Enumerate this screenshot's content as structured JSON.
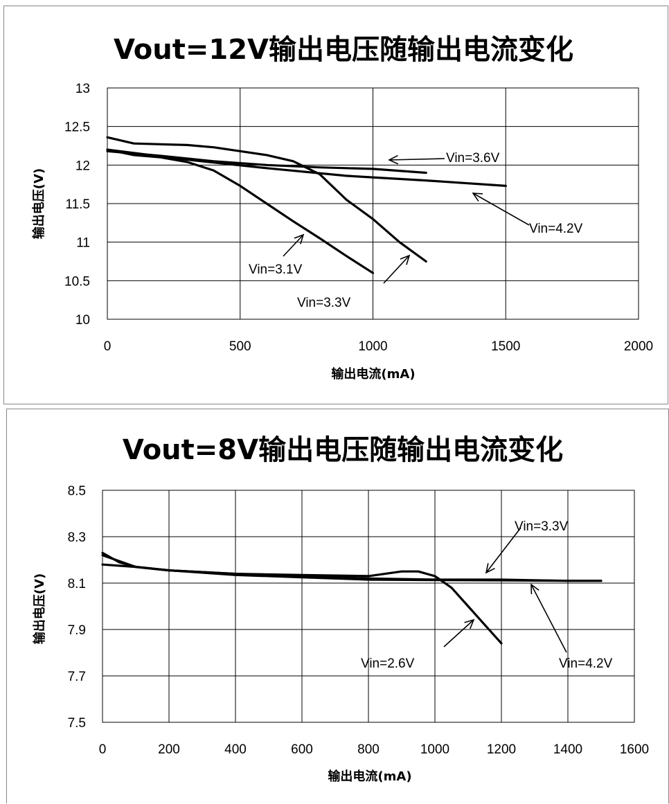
{
  "chart_data": [
    {
      "type": "line",
      "title": "Vout=12V输出电压随输出电流变化",
      "xlabel": "输出电流(mA)",
      "ylabel": "输出电压(V)",
      "xlim": [
        0,
        2000
      ],
      "ylim": [
        10,
        13
      ],
      "x_ticks": [
        "0",
        "500",
        "1000",
        "1500",
        "2000"
      ],
      "y_ticks": [
        "10",
        "10.5",
        "11",
        "11.5",
        "12",
        "12.5",
        "13"
      ],
      "grid": true,
      "series": [
        {
          "name": "Vin=3.1V",
          "points": [
            [
              0,
              12.2
            ],
            [
              100,
              12.13
            ],
            [
              200,
              12.1
            ],
            [
              300,
              12.04
            ],
            [
              400,
              11.93
            ],
            [
              500,
              11.73
            ],
            [
              600,
              11.5
            ],
            [
              700,
              11.27
            ],
            [
              800,
              11.05
            ],
            [
              900,
              10.82
            ],
            [
              1000,
              10.6
            ]
          ]
        },
        {
          "name": "Vin=3.3V",
          "points": [
            [
              0,
              12.36
            ],
            [
              100,
              12.28
            ],
            [
              200,
              12.27
            ],
            [
              300,
              12.26
            ],
            [
              400,
              12.23
            ],
            [
              500,
              12.18
            ],
            [
              600,
              12.13
            ],
            [
              700,
              12.05
            ],
            [
              800,
              11.88
            ],
            [
              900,
              11.55
            ],
            [
              1000,
              11.3
            ],
            [
              1100,
              11.0
            ],
            [
              1200,
              10.75
            ]
          ]
        },
        {
          "name": "Vin=3.6V",
          "points": [
            [
              0,
              12.18
            ],
            [
              200,
              12.12
            ],
            [
              400,
              12.05
            ],
            [
              600,
              12.0
            ],
            [
              800,
              11.97
            ],
            [
              1000,
              11.95
            ],
            [
              1200,
              11.9
            ]
          ]
        },
        {
          "name": "Vin=4.2V",
          "points": [
            [
              0,
              12.2
            ],
            [
              300,
              12.07
            ],
            [
              600,
              11.96
            ],
            [
              900,
              11.86
            ],
            [
              1200,
              11.8
            ],
            [
              1500,
              11.73
            ]
          ]
        }
      ],
      "annotations": [
        "Vin=3.6V",
        "Vin=4.2V",
        "Vin=3.1V",
        "Vin=3.3V"
      ]
    },
    {
      "type": "line",
      "title": "Vout=8V输出电压随输出电流变化",
      "xlabel": "输出电流(mA)",
      "ylabel": "输出电压(V)",
      "xlim": [
        0,
        1600
      ],
      "ylim": [
        7.5,
        8.5
      ],
      "x_ticks": [
        "0",
        "200",
        "400",
        "600",
        "800",
        "1000",
        "1200",
        "1400",
        "1600"
      ],
      "y_ticks": [
        "7.5",
        "7.7",
        "7.9",
        "8.1",
        "8.3",
        "8.5"
      ],
      "grid": true,
      "series": [
        {
          "name": "Vin=2.6V",
          "points": [
            [
              0,
              8.23
            ],
            [
              50,
              8.19
            ],
            [
              100,
              8.17
            ],
            [
              200,
              8.155
            ],
            [
              400,
              8.14
            ],
            [
              600,
              8.135
            ],
            [
              800,
              8.13
            ],
            [
              850,
              8.14
            ],
            [
              900,
              8.15
            ],
            [
              950,
              8.15
            ],
            [
              1000,
              8.13
            ],
            [
              1050,
              8.08
            ],
            [
              1100,
              8.0
            ],
            [
              1150,
              7.92
            ],
            [
              1200,
              7.84
            ]
          ]
        },
        {
          "name": "Vin=3.3V",
          "points": [
            [
              0,
              8.22
            ],
            [
              100,
              8.17
            ],
            [
              200,
              8.155
            ],
            [
              400,
              8.14
            ],
            [
              600,
              8.13
            ],
            [
              800,
              8.12
            ],
            [
              1000,
              8.115
            ],
            [
              1200,
              8.115
            ],
            [
              1400,
              8.11
            ],
            [
              1500,
              8.11
            ]
          ]
        },
        {
          "name": "Vin=4.2V",
          "points": [
            [
              0,
              8.18
            ],
            [
              100,
              8.17
            ],
            [
              200,
              8.155
            ],
            [
              400,
              8.135
            ],
            [
              600,
              8.125
            ],
            [
              800,
              8.115
            ],
            [
              1000,
              8.113
            ],
            [
              1200,
              8.112
            ],
            [
              1400,
              8.11
            ],
            [
              1500,
              8.11
            ]
          ]
        }
      ],
      "annotations": [
        "Vin=3.3V",
        "Vin=2.6V",
        "Vin=4.2V"
      ]
    }
  ]
}
